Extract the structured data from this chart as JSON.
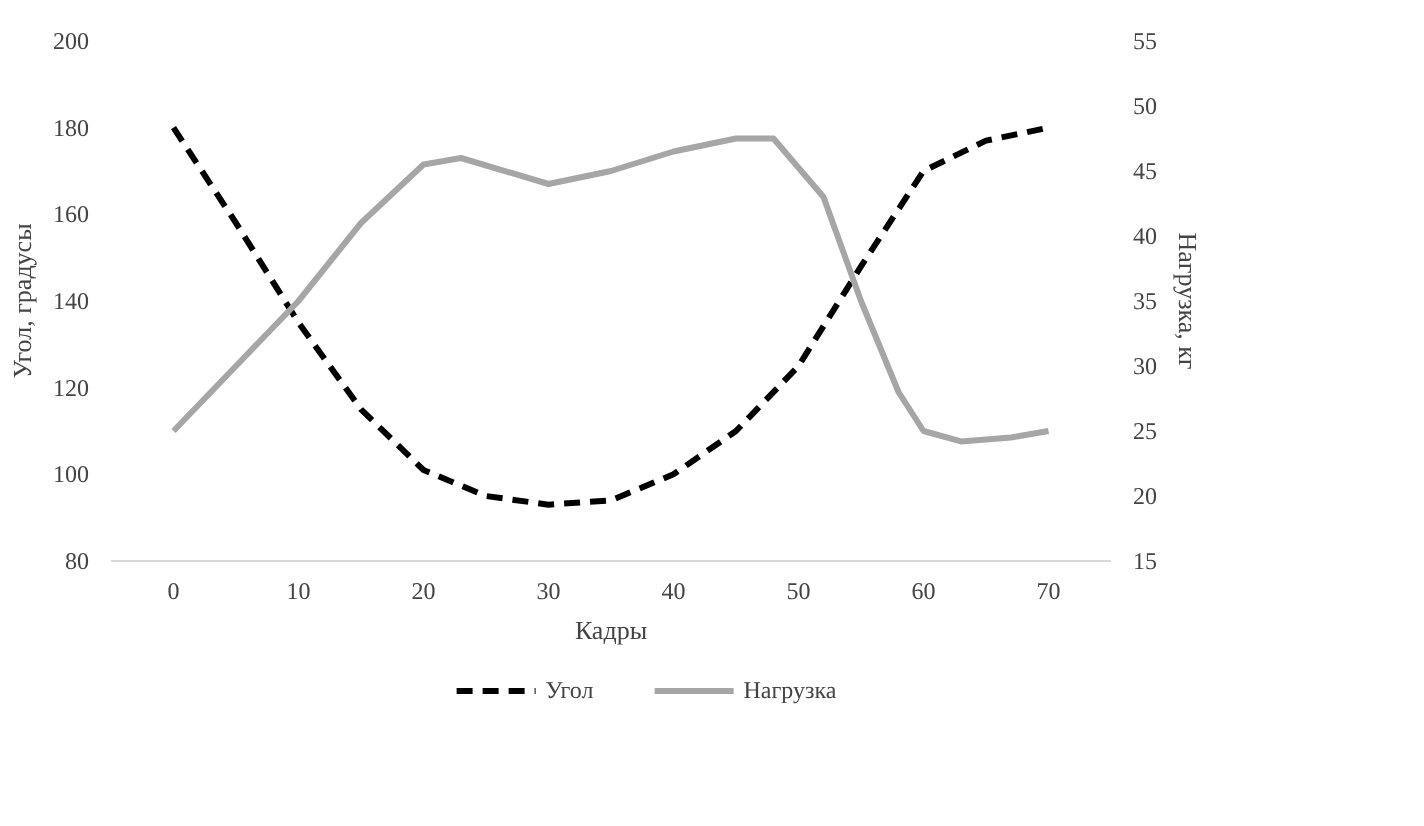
{
  "chart_data": {
    "type": "line",
    "xlabel": "Кадры",
    "ylabel": "Угол, градусы",
    "y2label": "Нагрузка, кг",
    "xlim": [
      -5,
      75
    ],
    "xticks": [
      0,
      10,
      20,
      30,
      40,
      50,
      60,
      70
    ],
    "ylim": [
      80,
      200
    ],
    "yticks": [
      80,
      100,
      120,
      140,
      160,
      180,
      200
    ],
    "y2lim": [
      15,
      55
    ],
    "y2ticks": [
      15,
      20,
      25,
      30,
      35,
      40,
      45,
      50,
      55
    ],
    "legend": "bottom",
    "grid": false,
    "series": [
      {
        "name": "Угол",
        "color": "#000000",
        "line_style": "dashed",
        "x": [
          0,
          5,
          10,
          15,
          20,
          25,
          30,
          35,
          40,
          45,
          50,
          55,
          60,
          65,
          70
        ],
        "values": [
          180,
          158,
          135,
          115,
          101,
          95,
          93,
          94,
          100,
          110,
          125,
          148,
          170,
          177,
          180
        ]
      },
      {
        "name": "Нагрузка",
        "color": "#a6a6a6",
        "line_style": "solid",
        "axis": "y2",
        "x": [
          0,
          5,
          10,
          15,
          20,
          23,
          30,
          35,
          40,
          45,
          48,
          52,
          55,
          58,
          60,
          63,
          67,
          70
        ],
        "values": [
          25,
          30,
          35,
          41,
          45.5,
          46,
          44,
          45,
          46.5,
          47.5,
          47.5,
          43,
          35,
          28,
          25,
          24.2,
          24.5,
          25
        ]
      }
    ]
  }
}
